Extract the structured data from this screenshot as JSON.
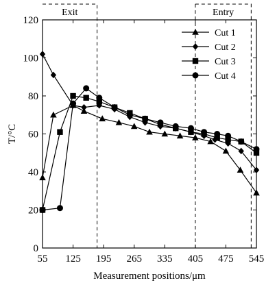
{
  "chart_data": {
    "type": "line",
    "xlabel": "Measurement positions/μm",
    "ylabel": "T/°C",
    "xlim": [
      55,
      545
    ],
    "ylim": [
      0,
      120
    ],
    "x_ticks": [
      55,
      125,
      195,
      265,
      335,
      405,
      475,
      545
    ],
    "y_ticks": [
      0,
      20,
      40,
      60,
      80,
      100,
      120
    ],
    "grid": false,
    "legend_position": "top-right",
    "annotations": [
      {
        "text": "Exit",
        "x_range": [
          55,
          180
        ]
      },
      {
        "text": "Entry",
        "x_range": [
          405,
          533
        ]
      }
    ],
    "series": [
      {
        "name": "Cut 1",
        "marker": "triangle",
        "x": [
          55,
          80,
          125,
          150,
          192,
          230,
          265,
          300,
          335,
          370,
          405,
          440,
          475,
          508,
          545
        ],
        "y": [
          37,
          70,
          75,
          72,
          68,
          66,
          64,
          61,
          60,
          59,
          58,
          56,
          51,
          41,
          29
        ]
      },
      {
        "name": "Cut 2",
        "marker": "diamond",
        "x": [
          55,
          80,
          125,
          150,
          185,
          220,
          255,
          290,
          325,
          360,
          395,
          425,
          450,
          480,
          510,
          545
        ],
        "y": [
          102,
          91,
          75,
          74,
          75,
          73,
          69,
          66,
          64,
          63,
          61,
          59,
          57,
          55,
          51,
          41
        ]
      },
      {
        "name": "Cut 3",
        "marker": "square",
        "x": [
          55,
          95,
          125,
          155,
          185,
          220,
          255,
          290,
          325,
          360,
          395,
          425,
          455,
          480,
          510,
          545
        ],
        "y": [
          20,
          61,
          80,
          79,
          77,
          74,
          71,
          68,
          65,
          63,
          61,
          60,
          58,
          57,
          56,
          50
        ]
      },
      {
        "name": "Cut 4",
        "marker": "circle",
        "x": [
          55,
          95,
          125,
          155,
          185,
          220,
          255,
          290,
          325,
          360,
          395,
          425,
          455,
          480,
          510,
          545
        ],
        "y": [
          20,
          21,
          76,
          84,
          79,
          74,
          70,
          68,
          66,
          64,
          63,
          61,
          60,
          59,
          56,
          52
        ]
      }
    ]
  }
}
